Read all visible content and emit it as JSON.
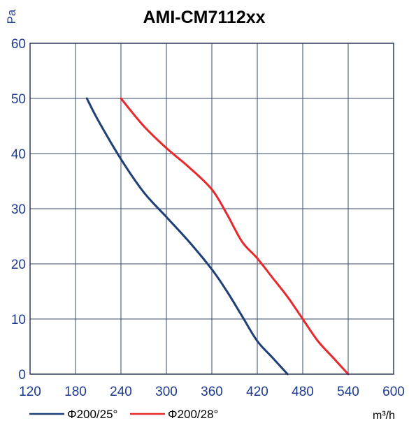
{
  "chart_data": {
    "type": "line",
    "title": "AMI-CM7112xx",
    "ylabel": "Pa",
    "xlabel": "m³/h",
    "xlim": [
      120,
      600
    ],
    "ylim": [
      0,
      60
    ],
    "x_ticks": [
      120,
      180,
      240,
      300,
      360,
      420,
      480,
      540,
      600
    ],
    "y_ticks": [
      0,
      10,
      20,
      30,
      40,
      50,
      60
    ],
    "grid": true,
    "legend_position": "bottom-left",
    "series": [
      {
        "name": "Φ200/25°",
        "color": "#1f3f77",
        "points": [
          [
            195,
            50
          ],
          [
            210,
            46
          ],
          [
            240,
            39
          ],
          [
            270,
            33
          ],
          [
            300,
            28.5
          ],
          [
            330,
            24
          ],
          [
            360,
            19
          ],
          [
            380,
            15
          ],
          [
            400,
            10.5
          ],
          [
            420,
            6
          ],
          [
            440,
            3
          ],
          [
            460,
            0
          ]
        ]
      },
      {
        "name": "Φ200/28°",
        "color": "#e8292b",
        "points": [
          [
            240,
            50
          ],
          [
            270,
            45
          ],
          [
            300,
            41
          ],
          [
            330,
            37.5
          ],
          [
            360,
            33.5
          ],
          [
            380,
            29
          ],
          [
            400,
            24
          ],
          [
            420,
            21
          ],
          [
            440,
            17.5
          ],
          [
            460,
            14
          ],
          [
            480,
            10
          ],
          [
            500,
            6
          ],
          [
            520,
            3
          ],
          [
            540,
            0
          ]
        ]
      }
    ]
  }
}
